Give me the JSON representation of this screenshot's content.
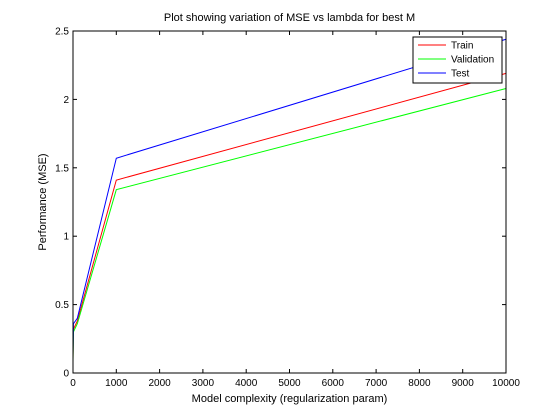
{
  "chart_data": {
    "type": "line",
    "title": "Plot showing variation of MSE vs lambda for best M",
    "xlabel": "Model complexity (regularization param)",
    "ylabel": "Performance (MSE)",
    "xlim": [
      0,
      10000
    ],
    "ylim": [
      0,
      2.5
    ],
    "xticks": [
      0,
      1000,
      2000,
      3000,
      4000,
      5000,
      6000,
      7000,
      8000,
      9000,
      10000
    ],
    "yticks": [
      0,
      0.5,
      1,
      1.5,
      2,
      2.5
    ],
    "xtick_labels": [
      "0",
      "1000",
      "2000",
      "3000",
      "4000",
      "5000",
      "6000",
      "7000",
      "8000",
      "9000",
      "10000"
    ],
    "ytick_labels": [
      "0",
      "0.5",
      "1",
      "1.5",
      "2",
      "2.5"
    ],
    "grid": false,
    "legend_position": "top-right",
    "x": [
      0,
      10,
      100,
      1000,
      10000
    ],
    "series": [
      {
        "name": "Train",
        "color": "#ff0000",
        "values": [
          0.1,
          0.32,
          0.38,
          1.41,
          2.19
        ]
      },
      {
        "name": "Validation",
        "color": "#00ff00",
        "values": [
          0.08,
          0.3,
          0.36,
          1.34,
          2.08
        ]
      },
      {
        "name": "Test",
        "color": "#0000ff",
        "values": [
          0.13,
          0.36,
          0.4,
          1.57,
          2.44
        ]
      }
    ]
  }
}
